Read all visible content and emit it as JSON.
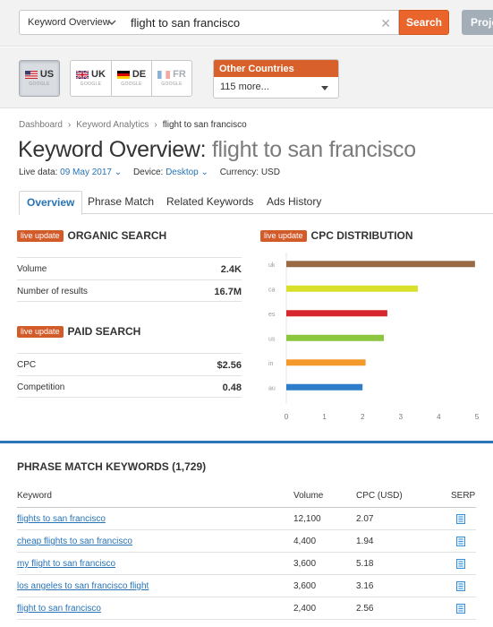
{
  "search": {
    "database_label": "Keyword Overview",
    "query": "flight to san francisco",
    "button_label": "Search",
    "projects_label": "Proje"
  },
  "countries": [
    {
      "code": "US",
      "engine": "GOOGLE",
      "flag": "us-flag",
      "active": true
    },
    {
      "code": "UK",
      "engine": "GOOGLE",
      "flag": "uk-flag",
      "active": false
    },
    {
      "code": "DE",
      "engine": "GOOGLE",
      "flag": "de-flag",
      "active": false
    },
    {
      "code": "FR",
      "engine": "GOOGLE",
      "flag": "fr-flag",
      "active": false
    }
  ],
  "other_countries": {
    "label": "Other Countries",
    "selected": "115 more..."
  },
  "breadcrumb": [
    "Dashboard",
    "Keyword Analytics",
    "flight to san francisco"
  ],
  "page": {
    "title_prefix": "Keyword Overview: ",
    "title_keyword": "flight to san francisco",
    "live_data_label": "Live data: ",
    "live_data_value": "09 May 2017",
    "device_label": "Device: ",
    "device_value": "Desktop",
    "currency": "Currency: USD"
  },
  "tabs": [
    "Overview",
    "Phrase Match",
    "Related Keywords",
    "Ads History"
  ],
  "live_badge": "live update",
  "organic": {
    "title": "ORGANIC SEARCH",
    "rows": [
      {
        "label": "Volume",
        "value": "2.4K"
      },
      {
        "label": "Number of results",
        "value": "16.7M"
      }
    ]
  },
  "paid": {
    "title": "PAID SEARCH",
    "rows": [
      {
        "label": "CPC",
        "value": "$2.56"
      },
      {
        "label": "Competition",
        "value": "0.48"
      }
    ]
  },
  "cpc_title": "CPC DISTRIBUTION",
  "chart_data": {
    "type": "bar",
    "orientation": "horizontal",
    "title": "CPC DISTRIBUTION",
    "categories": [
      "uk",
      "ca",
      "es",
      "us",
      "in",
      "au"
    ],
    "values": [
      4.95,
      3.45,
      2.65,
      2.56,
      2.08,
      2.0
    ],
    "colors": [
      "#9a6a45",
      "#d8e02a",
      "#d7262e",
      "#8cc63e",
      "#f39a2b",
      "#2e7dc8"
    ],
    "xticks": [
      "0",
      "1",
      "2",
      "3",
      "4",
      "5"
    ],
    "xlim": [
      0,
      5
    ],
    "grid": false
  },
  "phrase_match": {
    "title": "PHRASE MATCH KEYWORDS (1,729)",
    "headers": {
      "keyword": "Keyword",
      "volume": "Volume",
      "cpc": "CPC (USD)",
      "serp": "SERP"
    },
    "rows": [
      {
        "keyword": "flights to san francisco",
        "volume": "12,100",
        "cpc": "2.07"
      },
      {
        "keyword": "cheap flights to san francisco",
        "volume": "4,400",
        "cpc": "1.94"
      },
      {
        "keyword": "my flight to san francisco",
        "volume": "3,600",
        "cpc": "5.18"
      },
      {
        "keyword": "los angeles to san francisco flight",
        "volume": "3,600",
        "cpc": "3.16"
      },
      {
        "keyword": "flight to san francisco",
        "volume": "2,400",
        "cpc": "2.56"
      }
    ]
  }
}
